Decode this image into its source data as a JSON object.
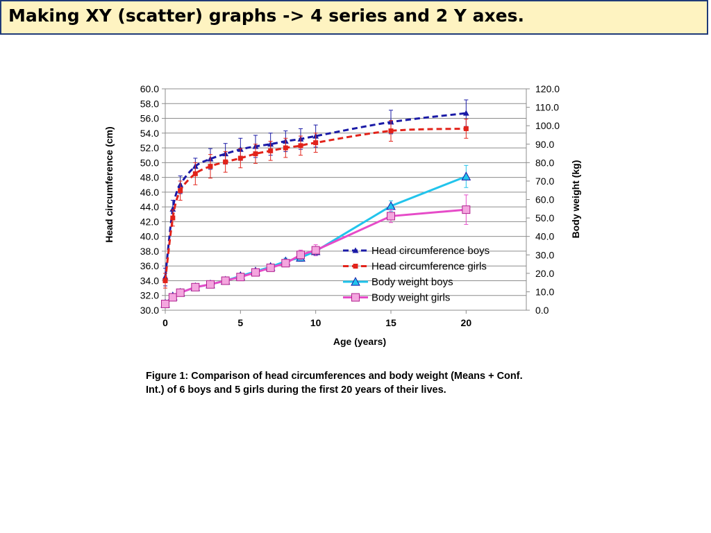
{
  "title": "Making XY (scatter) graphs -> 4 series and 2 Y axes.",
  "caption": "Figure 1: Comparison of head circumferences and body weight (Means + Conf. Int.) of 6 boys and 5 girls during the first 20 years of their lives.",
  "colors": {
    "title_bg": "#fef3c1",
    "title_border": "#1f3a78",
    "head_boys": "#1a1aa6",
    "head_girls": "#e2231a",
    "weight_boys": "#22c4ec",
    "weight_girls": "#e64bc8"
  },
  "chart_data": {
    "type": "scatter",
    "xlabel": "Age (years)",
    "ylabel": "Head circumference (cm)",
    "y2label": "Body weight (kg)",
    "xlim": [
      0,
      24
    ],
    "ylim": [
      30,
      60
    ],
    "y2lim": [
      0,
      120
    ],
    "xticks": [
      0,
      5,
      10,
      15,
      20
    ],
    "xtick_labels": [
      "0",
      "5",
      "10",
      "15",
      "20"
    ],
    "yticks": [
      30,
      32,
      34,
      36,
      38,
      40,
      42,
      44,
      46,
      48,
      50,
      52,
      54,
      56,
      58,
      60
    ],
    "ytick_labels": [
      "30.0",
      "32.0",
      "34.0",
      "36.0",
      "38.0",
      "40.0",
      "42.0",
      "44.0",
      "46.0",
      "48.0",
      "50.0",
      "52.0",
      "54.0",
      "56.0",
      "58.0",
      "60.0"
    ],
    "y2ticks": [
      0,
      10,
      20,
      30,
      40,
      50,
      60,
      70,
      80,
      90,
      100,
      110,
      120
    ],
    "y2tick_labels": [
      "0.0",
      "10.0",
      "20.0",
      "30.0",
      "40.0",
      "50.0",
      "60.0",
      "70.0",
      "80.0",
      "90.0",
      "100.0",
      "110.0",
      "120.0"
    ],
    "grid": true,
    "legend_position": "right-middle",
    "series": [
      {
        "name": "Head circumference boys",
        "axis": "left",
        "line": "dashed",
        "marker": "triangle",
        "x": [
          0,
          0.5,
          1,
          2,
          3,
          4,
          5,
          6,
          7,
          8,
          9,
          10,
          15,
          20
        ],
        "y": [
          34.5,
          43.7,
          47.0,
          49.5,
          50.5,
          51.2,
          51.8,
          52.2,
          52.5,
          52.9,
          53.2,
          53.6,
          55.5,
          56.7
        ],
        "err": [
          1.2,
          1.2,
          1.2,
          1.1,
          1.4,
          1.4,
          1.5,
          1.5,
          1.5,
          1.4,
          1.4,
          1.5,
          1.6,
          1.8
        ]
      },
      {
        "name": "Head circumference girls",
        "axis": "left",
        "line": "dashed",
        "marker": "square",
        "x": [
          0,
          0.5,
          1,
          2,
          3,
          4,
          5,
          6,
          7,
          8,
          9,
          10,
          15,
          20
        ],
        "y": [
          34.0,
          42.5,
          46.2,
          48.5,
          49.5,
          50.1,
          50.6,
          51.2,
          51.6,
          52.0,
          52.3,
          52.7,
          54.3,
          54.6
        ],
        "err": [
          1.0,
          1.1,
          1.3,
          1.5,
          1.6,
          1.4,
          1.3,
          1.3,
          1.3,
          1.3,
          1.3,
          1.3,
          1.4,
          1.3
        ]
      },
      {
        "name": "Body weight boys",
        "axis": "right",
        "line": "solid",
        "marker": "triangle",
        "x": [
          0,
          0.5,
          1,
          2,
          3,
          4,
          5,
          6,
          7,
          8,
          9,
          10,
          15,
          20
        ],
        "y": [
          3.5,
          7.5,
          9.5,
          12.5,
          14.0,
          16.0,
          18.5,
          21.0,
          23.5,
          26.5,
          28.5,
          32.0,
          56.5,
          72.5
        ],
        "err": [
          0.5,
          0.6,
          0.7,
          0.8,
          0.9,
          1.0,
          1.2,
          1.3,
          1.5,
          1.7,
          2.0,
          2.3,
          2.8,
          6.0
        ]
      },
      {
        "name": "Body weight girls",
        "axis": "right",
        "line": "solid",
        "marker": "square",
        "x": [
          0,
          0.5,
          1,
          2,
          3,
          4,
          5,
          6,
          7,
          8,
          9,
          10,
          15,
          20
        ],
        "y": [
          3.4,
          7.0,
          9.5,
          12.5,
          14.0,
          16.0,
          18.0,
          20.5,
          23.0,
          25.5,
          30.0,
          32.5,
          51.0,
          54.5
        ],
        "err": [
          0.4,
          0.6,
          0.8,
          1.0,
          1.0,
          1.0,
          1.2,
          1.4,
          1.6,
          2.0,
          2.6,
          3.0,
          3.5,
          8.0
        ]
      }
    ]
  }
}
